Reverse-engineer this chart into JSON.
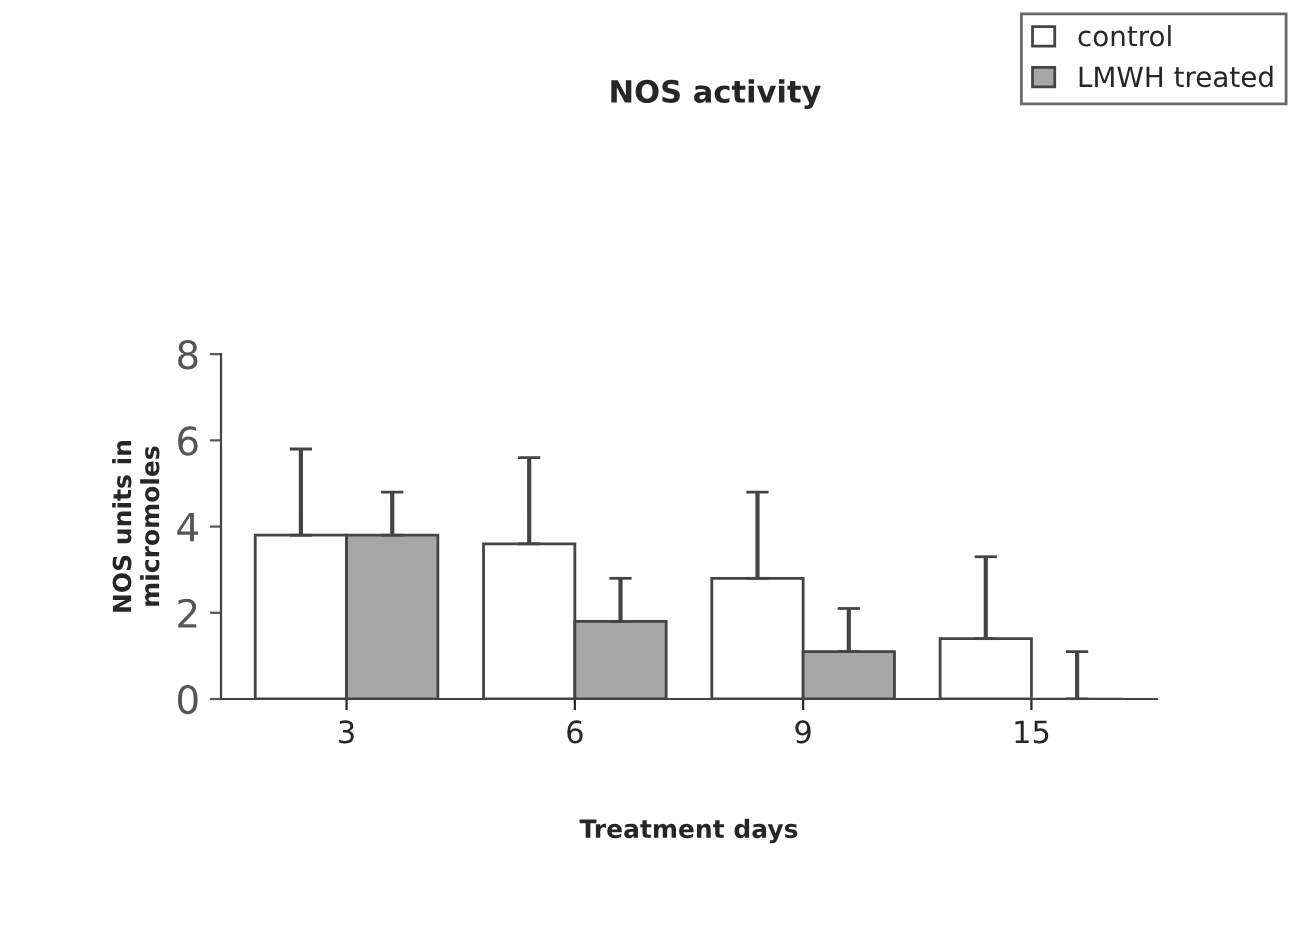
{
  "chart_data": {
    "type": "bar",
    "title": "NOS activity",
    "xlabel": "Treatment days",
    "ylabel": "NOS units in\nmicromoles",
    "categories": [
      "3",
      "6",
      "9",
      "15"
    ],
    "series": [
      {
        "name": "control",
        "color": "#ffffff",
        "values": [
          3.8,
          3.6,
          2.8,
          1.4
        ],
        "errors": [
          [
            3.8,
            5.8
          ],
          [
            3.6,
            5.6
          ],
          [
            2.8,
            4.8
          ],
          [
            1.4,
            3.3
          ]
        ]
      },
      {
        "name": "LMWH treated",
        "color": "#a6a6a6",
        "values": [
          3.8,
          1.8,
          1.1,
          0
        ],
        "errors": [
          [
            3.8,
            4.8
          ],
          [
            1.8,
            2.8
          ],
          [
            1.1,
            2.1
          ],
          [
            0,
            1.1
          ]
        ]
      }
    ],
    "ylim": [
      0,
      8
    ],
    "yticks": [
      0,
      2,
      4,
      6,
      8
    ],
    "grid": false,
    "legend": "top right"
  }
}
